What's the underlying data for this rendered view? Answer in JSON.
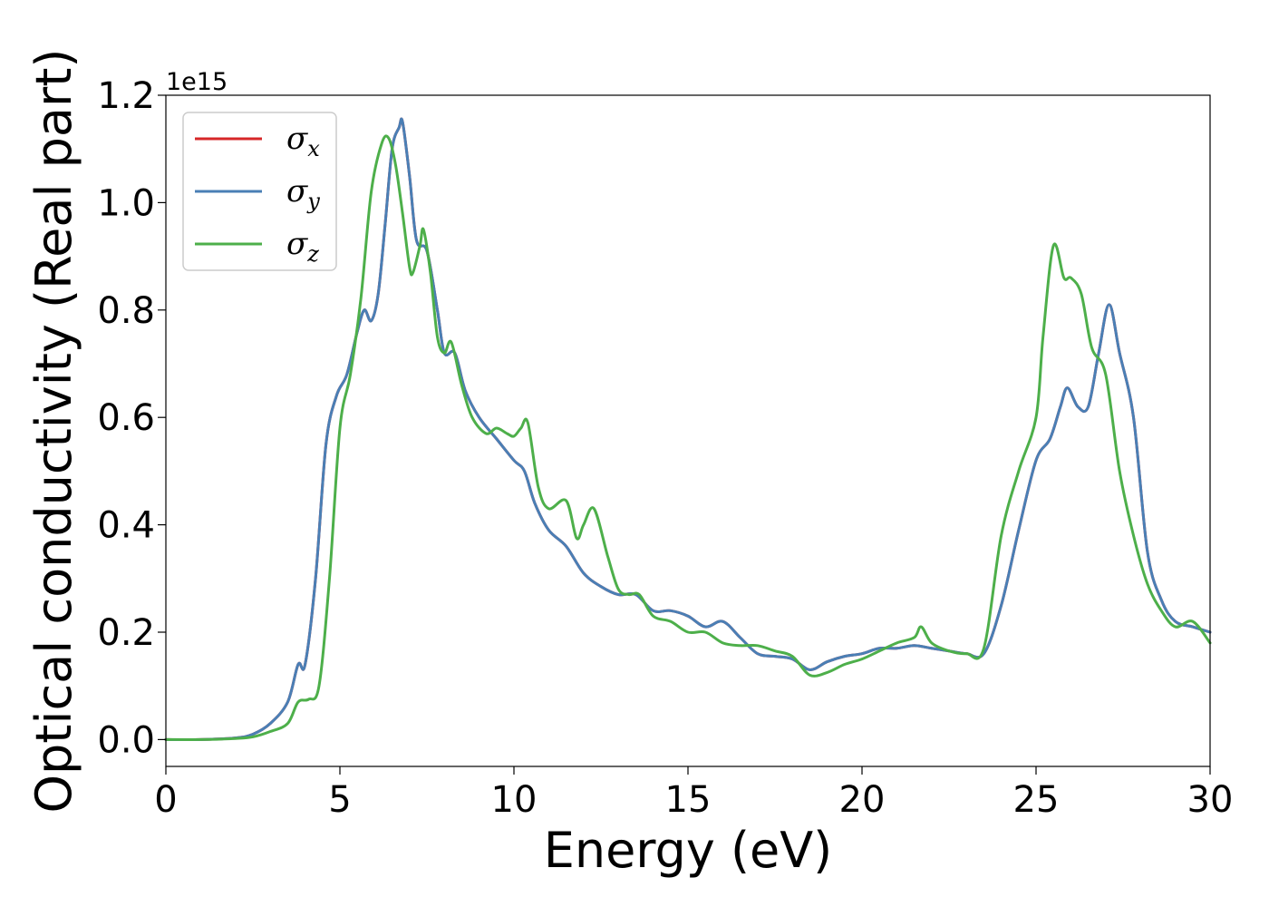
{
  "chart_data": {
    "type": "line",
    "title": "",
    "xlabel": "Energy (eV)",
    "ylabel": "Optical conductivity (Real part)",
    "y_offset_text": "1e15",
    "xlim": [
      0,
      30
    ],
    "ylim": [
      -0.05,
      1.2
    ],
    "x_ticks": [
      0,
      5,
      10,
      15,
      20,
      25,
      30
    ],
    "y_ticks": [
      0.0,
      0.2,
      0.4,
      0.6,
      0.8,
      1.0,
      1.2
    ],
    "x_tick_labels": [
      "0",
      "5",
      "10",
      "15",
      "20",
      "25",
      "30"
    ],
    "y_tick_labels": [
      "0.0",
      "0.2",
      "0.4",
      "0.6",
      "0.8",
      "1.0",
      "1.2"
    ],
    "grid": false,
    "legend_placement": "top-left",
    "legend": [
      {
        "symbol": "σ",
        "sub": "x",
        "color": "#d62728"
      },
      {
        "symbol": "σ",
        "sub": "y",
        "color": "#4a7fb5"
      },
      {
        "symbol": "σ",
        "sub": "z",
        "color": "#4daf4a"
      }
    ],
    "series": [
      {
        "color": "#d62728",
        "x": [
          0,
          1,
          2,
          2.5,
          3,
          3.5,
          3.8,
          4.0,
          4.3,
          4.6,
          4.9,
          5.2,
          5.5,
          5.7,
          5.9,
          6.1,
          6.3,
          6.5,
          6.7,
          6.8,
          7.0,
          7.2,
          7.5,
          7.8,
          8.0,
          8.3,
          8.6,
          9.0,
          9.5,
          10.0,
          10.3,
          10.6,
          11.0,
          11.5,
          12.0,
          12.5,
          13.0,
          13.5,
          14.0,
          14.5,
          15.0,
          15.5,
          16.0,
          16.5,
          17.0,
          17.5,
          18.0,
          18.5,
          19.0,
          19.5,
          20.0,
          20.5,
          21.0,
          21.5,
          22.0,
          22.5,
          23.0,
          23.5,
          24.0,
          24.5,
          25.0,
          25.4,
          25.7,
          25.9,
          26.2,
          26.5,
          26.8,
          27.1,
          27.4,
          27.8,
          28.2,
          28.6,
          29.0,
          29.5,
          30.0
        ],
        "values": [
          0.0,
          0.0,
          0.003,
          0.01,
          0.03,
          0.07,
          0.14,
          0.14,
          0.3,
          0.55,
          0.64,
          0.68,
          0.76,
          0.8,
          0.78,
          0.83,
          0.96,
          1.1,
          1.14,
          1.15,
          1.05,
          0.93,
          0.91,
          0.8,
          0.72,
          0.72,
          0.65,
          0.6,
          0.56,
          0.52,
          0.5,
          0.44,
          0.39,
          0.36,
          0.31,
          0.285,
          0.27,
          0.27,
          0.24,
          0.24,
          0.23,
          0.21,
          0.22,
          0.19,
          0.16,
          0.155,
          0.15,
          0.13,
          0.145,
          0.155,
          0.16,
          0.17,
          0.17,
          0.175,
          0.17,
          0.165,
          0.16,
          0.16,
          0.25,
          0.39,
          0.52,
          0.56,
          0.62,
          0.655,
          0.62,
          0.62,
          0.72,
          0.81,
          0.72,
          0.6,
          0.35,
          0.26,
          0.22,
          0.21,
          0.2
        ]
      },
      {
        "color": "#4a7fb5",
        "x": [
          0,
          1,
          2,
          2.5,
          3,
          3.5,
          3.8,
          4.0,
          4.3,
          4.6,
          4.9,
          5.2,
          5.5,
          5.7,
          5.9,
          6.1,
          6.3,
          6.5,
          6.7,
          6.8,
          7.0,
          7.2,
          7.5,
          7.8,
          8.0,
          8.3,
          8.6,
          9.0,
          9.5,
          10.0,
          10.3,
          10.6,
          11.0,
          11.5,
          12.0,
          12.5,
          13.0,
          13.5,
          14.0,
          14.5,
          15.0,
          15.5,
          16.0,
          16.5,
          17.0,
          17.5,
          18.0,
          18.5,
          19.0,
          19.5,
          20.0,
          20.5,
          21.0,
          21.5,
          22.0,
          22.5,
          23.0,
          23.5,
          24.0,
          24.5,
          25.0,
          25.4,
          25.7,
          25.9,
          26.2,
          26.5,
          26.8,
          27.1,
          27.4,
          27.8,
          28.2,
          28.6,
          29.0,
          29.5,
          30.0
        ],
        "values": [
          0.0,
          0.0,
          0.003,
          0.01,
          0.03,
          0.07,
          0.14,
          0.14,
          0.3,
          0.55,
          0.64,
          0.68,
          0.76,
          0.8,
          0.78,
          0.83,
          0.96,
          1.1,
          1.14,
          1.15,
          1.05,
          0.93,
          0.91,
          0.8,
          0.72,
          0.72,
          0.65,
          0.6,
          0.56,
          0.52,
          0.5,
          0.44,
          0.39,
          0.36,
          0.31,
          0.285,
          0.27,
          0.27,
          0.24,
          0.24,
          0.23,
          0.21,
          0.22,
          0.19,
          0.16,
          0.155,
          0.15,
          0.13,
          0.145,
          0.155,
          0.16,
          0.17,
          0.17,
          0.175,
          0.17,
          0.165,
          0.16,
          0.16,
          0.25,
          0.39,
          0.52,
          0.56,
          0.62,
          0.655,
          0.62,
          0.62,
          0.72,
          0.81,
          0.72,
          0.6,
          0.35,
          0.26,
          0.22,
          0.21,
          0.2
        ]
      },
      {
        "color": "#4daf4a",
        "x": [
          0,
          1,
          2,
          2.5,
          3,
          3.5,
          3.8,
          4.1,
          4.4,
          4.7,
          5.0,
          5.3,
          5.6,
          5.9,
          6.2,
          6.4,
          6.6,
          6.8,
          7.0,
          7.1,
          7.3,
          7.4,
          7.6,
          7.8,
          8.0,
          8.2,
          8.5,
          8.8,
          9.2,
          9.5,
          9.8,
          10.0,
          10.2,
          10.4,
          10.7,
          11.0,
          11.5,
          11.8,
          12.0,
          12.3,
          12.7,
          13.0,
          13.3,
          13.6,
          14.0,
          14.5,
          15.0,
          15.5,
          16.0,
          16.5,
          17.0,
          17.5,
          18.0,
          18.5,
          19.0,
          19.5,
          20.0,
          20.5,
          21.0,
          21.5,
          21.7,
          22.0,
          22.5,
          23.0,
          23.5,
          24.0,
          24.5,
          25.0,
          25.2,
          25.5,
          25.8,
          26.0,
          26.3,
          26.6,
          27.0,
          27.4,
          27.8,
          28.2,
          28.6,
          29.0,
          29.5,
          30.0
        ],
        "values": [
          0.0,
          0.0,
          0.002,
          0.005,
          0.015,
          0.03,
          0.07,
          0.075,
          0.1,
          0.3,
          0.58,
          0.68,
          0.82,
          1.02,
          1.11,
          1.12,
          1.07,
          0.98,
          0.88,
          0.87,
          0.92,
          0.95,
          0.87,
          0.75,
          0.72,
          0.74,
          0.66,
          0.6,
          0.57,
          0.58,
          0.57,
          0.565,
          0.58,
          0.59,
          0.47,
          0.43,
          0.445,
          0.375,
          0.4,
          0.43,
          0.34,
          0.28,
          0.27,
          0.27,
          0.23,
          0.22,
          0.2,
          0.2,
          0.18,
          0.175,
          0.175,
          0.165,
          0.155,
          0.12,
          0.125,
          0.14,
          0.15,
          0.165,
          0.18,
          0.19,
          0.21,
          0.18,
          0.165,
          0.16,
          0.17,
          0.38,
          0.5,
          0.6,
          0.75,
          0.92,
          0.86,
          0.86,
          0.83,
          0.73,
          0.68,
          0.5,
          0.38,
          0.29,
          0.24,
          0.21,
          0.22,
          0.18
        ]
      }
    ]
  }
}
